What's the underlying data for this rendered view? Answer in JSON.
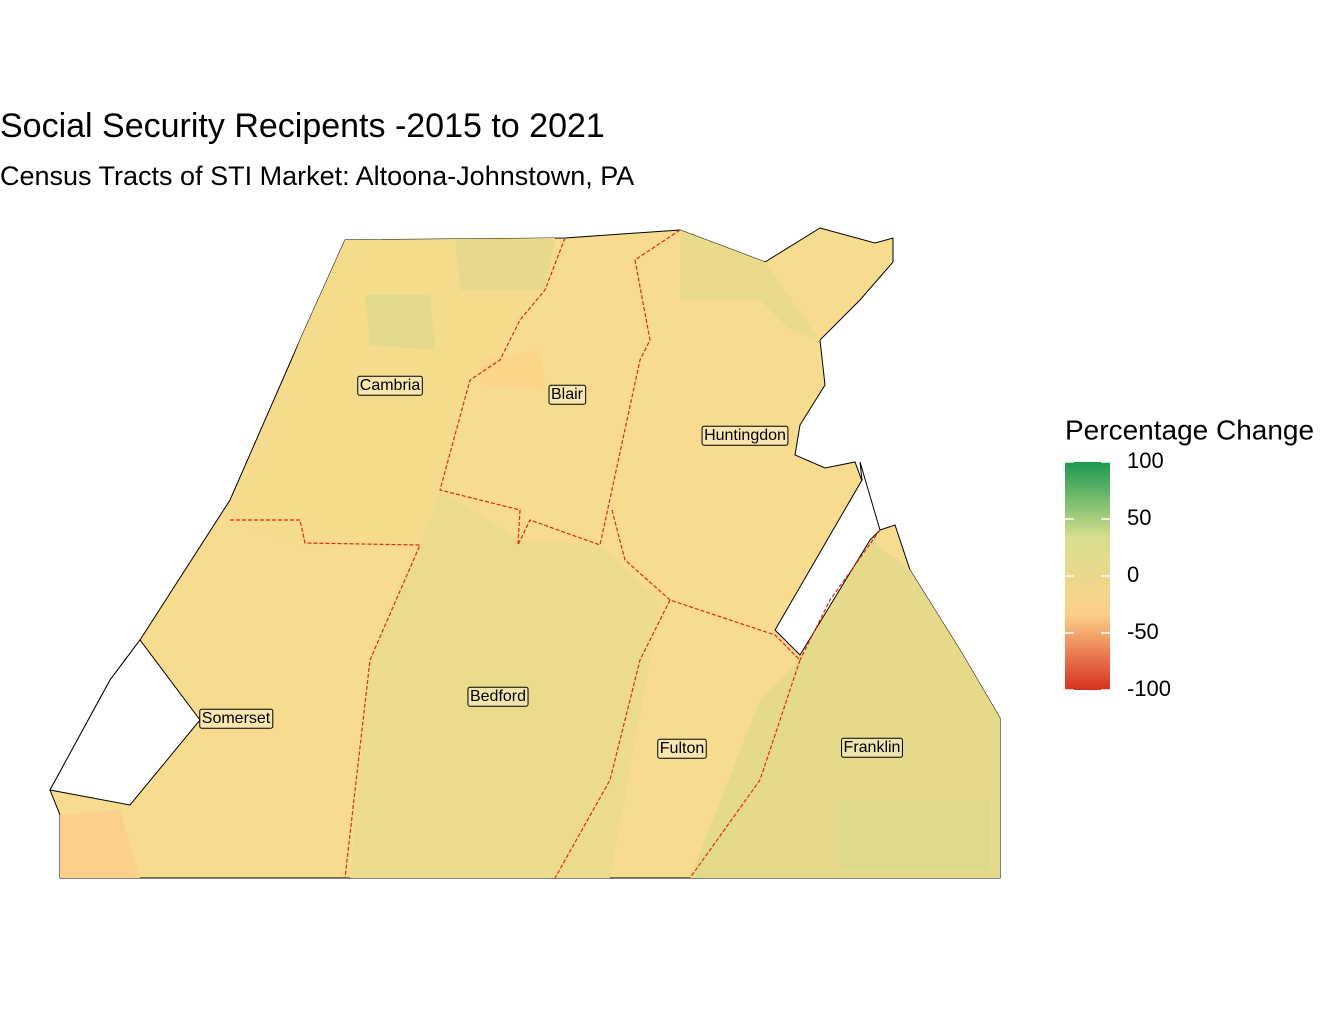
{
  "title": "Social Security Recipents -2015 to 2021",
  "subtitle": "Census Tracts of STI Market: Altoona-Johnstown, PA",
  "legend": {
    "title": "Percentage Change",
    "min": -100,
    "max": 100,
    "ticks": [
      100,
      50,
      0,
      -50,
      -100
    ],
    "colors": [
      "#d7301f",
      "#fdd08a",
      "#d9df8e",
      "#1a9850"
    ]
  },
  "counties": [
    {
      "label": "Cambria"
    },
    {
      "label": "Blair"
    },
    {
      "label": "Huntingdon"
    },
    {
      "label": "Somerset"
    },
    {
      "label": "Bedford"
    },
    {
      "label": "Fulton"
    },
    {
      "label": "Franklin"
    }
  ]
}
